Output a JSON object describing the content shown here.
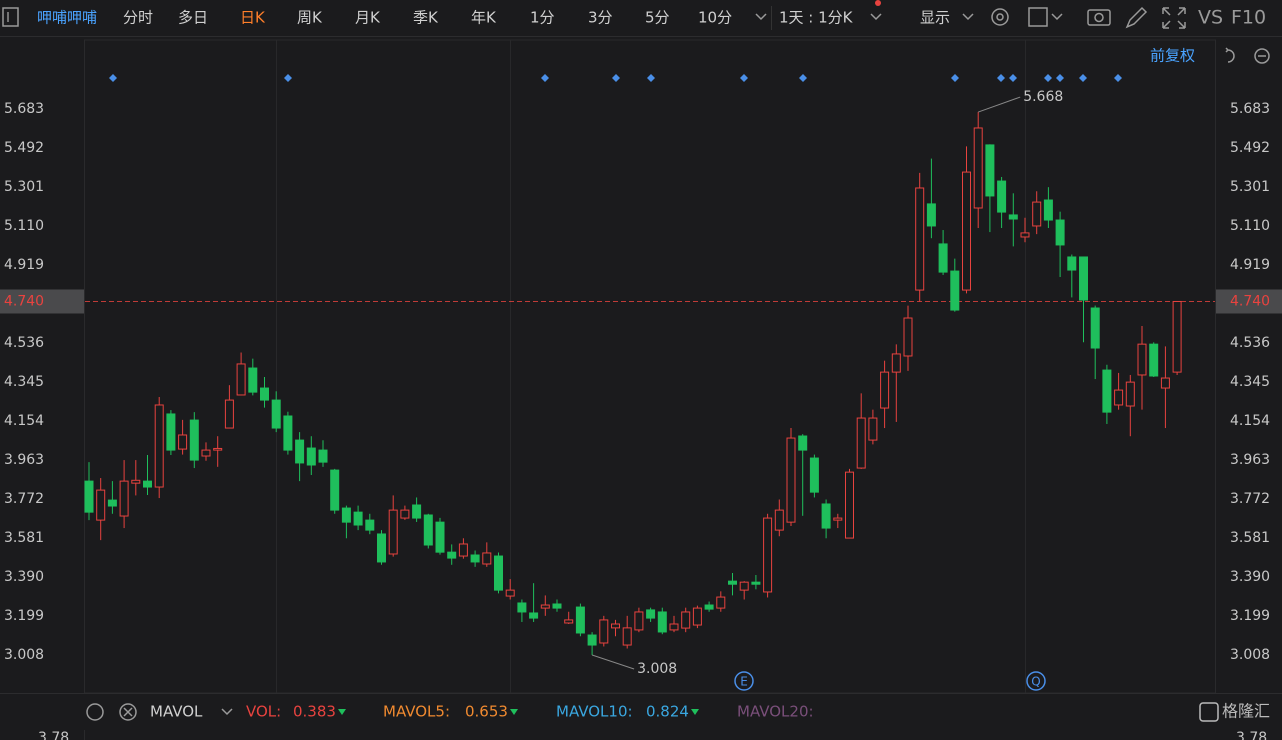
{
  "toolbar": {
    "stock_name": "呷哺呷哺",
    "tabs": [
      "分时",
      "多日",
      "日K",
      "周K",
      "月K",
      "季K",
      "年K",
      "1分",
      "3分",
      "5分",
      "10分"
    ],
    "period": "1天 : 1分K",
    "display": "显示",
    "vs": "VS",
    "f10": "F10"
  },
  "chart_data": {
    "type": "candlestick",
    "open": [
      3.86,
      3.669,
      3.767,
      3.689,
      3.85,
      3.86,
      3.831,
      4.189,
      4.017,
      4.159,
      3.983,
      4.012,
      4.12,
      4.282,
      4.414,
      4.316,
      4.257,
      4.179,
      4.061,
      4.022,
      4.012,
      3.914,
      3.728,
      3.708,
      3.669,
      3.601,
      3.503,
      3.679,
      3.743,
      3.694,
      3.659,
      3.512,
      3.493,
      3.498,
      3.454,
      3.493,
      3.297,
      3.263,
      3.214,
      3.238,
      3.258,
      3.165,
      3.243,
      3.106,
      3.067,
      3.141,
      3.057,
      3.131,
      3.229,
      3.219,
      3.131,
      3.14,
      3.155,
      3.253,
      3.238,
      3.37,
      3.326,
      3.365,
      3.317,
      3.62,
      3.659,
      4.081,
      3.973,
      3.748,
      3.669,
      3.581,
      3.924,
      4.061,
      4.218,
      4.394,
      4.473,
      4.796,
      5.218,
      5.022,
      4.889,
      4.796,
      5.198,
      5.507,
      5.33,
      5.164,
      5.056,
      5.11,
      5.237,
      5.139,
      4.958,
      4.958,
      4.708,
      4.404,
      4.233,
      4.228,
      4.38,
      4.531,
      4.316,
      4.394
    ],
    "high": [
      3.953,
      3.875,
      3.86,
      3.963,
      3.963,
      3.988,
      4.272,
      4.208,
      4.16,
      4.198,
      4.05,
      4.08,
      4.33,
      4.49,
      4.46,
      4.37,
      4.3,
      4.2,
      4.1,
      4.08,
      4.06,
      3.92,
      3.74,
      3.74,
      3.7,
      3.62,
      3.79,
      3.74,
      3.78,
      3.7,
      3.68,
      3.55,
      3.58,
      3.52,
      3.56,
      3.51,
      3.38,
      3.28,
      3.36,
      3.3,
      3.28,
      3.22,
      3.26,
      3.12,
      3.2,
      3.18,
      3.2,
      3.24,
      3.24,
      3.24,
      3.2,
      3.24,
      3.25,
      3.27,
      3.32,
      3.41,
      3.37,
      3.4,
      3.7,
      3.77,
      4.12,
      4.09,
      3.99,
      3.77,
      3.7,
      3.92,
      4.29,
      4.21,
      4.45,
      4.53,
      4.72,
      5.37,
      5.44,
      5.09,
      4.95,
      5.5,
      5.668,
      5.51,
      5.35,
      5.27,
      5.15,
      5.28,
      5.3,
      5.18,
      4.97,
      4.96,
      4.72,
      4.43,
      4.39,
      4.38,
      4.62,
      4.54,
      4.52,
      4.74
    ],
    "low": [
      3.669,
      3.571,
      3.7,
      3.63,
      3.79,
      3.792,
      3.777,
      3.988,
      3.99,
      3.924,
      3.96,
      3.93,
      4.12,
      4.28,
      4.28,
      4.22,
      4.1,
      3.99,
      3.86,
      3.89,
      3.93,
      3.7,
      3.58,
      3.62,
      3.6,
      3.45,
      3.49,
      3.67,
      3.66,
      3.53,
      3.5,
      3.45,
      3.48,
      3.44,
      3.44,
      3.31,
      3.28,
      3.17,
      3.17,
      3.2,
      3.22,
      3.16,
      3.1,
      3.008,
      3.05,
      3.1,
      3.04,
      3.12,
      3.17,
      3.11,
      3.12,
      3.12,
      3.14,
      3.22,
      3.22,
      3.3,
      3.28,
      3.33,
      3.29,
      3.59,
      3.64,
      3.69,
      3.78,
      3.58,
      3.63,
      3.58,
      3.92,
      4.04,
      4.12,
      4.15,
      4.4,
      4.74,
      5.05,
      4.87,
      4.69,
      4.78,
      5.1,
      5.08,
      5.1,
      5.01,
      5.03,
      5.07,
      5.1,
      4.86,
      4.76,
      4.54,
      4.36,
      4.14,
      4.21,
      4.08,
      4.21,
      4.37,
      4.12,
      4.38
    ],
    "close": [
      3.708,
      3.816,
      3.738,
      3.86,
      3.864,
      3.831,
      4.233,
      4.012,
      4.086,
      3.963,
      4.012,
      4.02,
      4.257,
      4.434,
      4.296,
      4.257,
      4.12,
      4.012,
      3.949,
      3.939,
      3.953,
      3.718,
      3.659,
      3.645,
      3.62,
      3.464,
      3.718,
      3.718,
      3.679,
      3.547,
      3.512,
      3.483,
      3.552,
      3.464,
      3.508,
      3.326,
      3.326,
      3.219,
      3.189,
      3.253,
      3.238,
      3.18,
      3.116,
      3.057,
      3.18,
      3.16,
      3.141,
      3.219,
      3.189,
      3.121,
      3.16,
      3.219,
      3.238,
      3.233,
      3.292,
      3.355,
      3.365,
      3.355,
      3.679,
      3.718,
      4.071,
      4.012,
      3.806,
      3.63,
      3.679,
      3.904,
      4.169,
      4.169,
      4.394,
      4.483,
      4.659,
      5.296,
      5.11,
      4.884,
      4.698,
      5.374,
      5.59,
      5.257,
      5.178,
      5.144,
      5.076,
      5.227,
      5.139,
      5.017,
      4.894,
      4.747,
      4.512,
      4.198,
      4.306,
      4.345,
      4.531,
      4.375,
      4.365,
      4.74
    ],
    "up_color": "#e8433f",
    "down_color": "#1fbf5c",
    "ylim": [
      2.822,
      6.021
    ],
    "yticks": [
      5.683,
      5.492,
      5.301,
      {
        "value": 5.11,
        "label": "5.110"
      },
      4.919,
      {
        "value": 4.74,
        "label": "4.740"
      },
      4.536,
      4.345,
      4.154,
      3.963,
      3.772,
      3.581,
      {
        "value": 3.39,
        "label": "3.390"
      },
      3.199,
      3.008
    ],
    "grid": false,
    "adjustment": "前复权",
    "max_marker": 5.668,
    "min_marker": 3.008,
    "last_price": {
      "value": 4.74,
      "label": "4.740"
    },
    "lower_panel_tick": 3.78
  },
  "indicator_bar": {
    "name": "MAVOL",
    "items": [
      {
        "label": "VOL:",
        "value": 0.383
      },
      {
        "label": "MAVOL5:",
        "value": 0.653
      },
      {
        "label": "MAVOL10:",
        "value": 0.824
      },
      {
        "label": "MAVOL20:"
      }
    ]
  },
  "watermark": "格隆汇"
}
